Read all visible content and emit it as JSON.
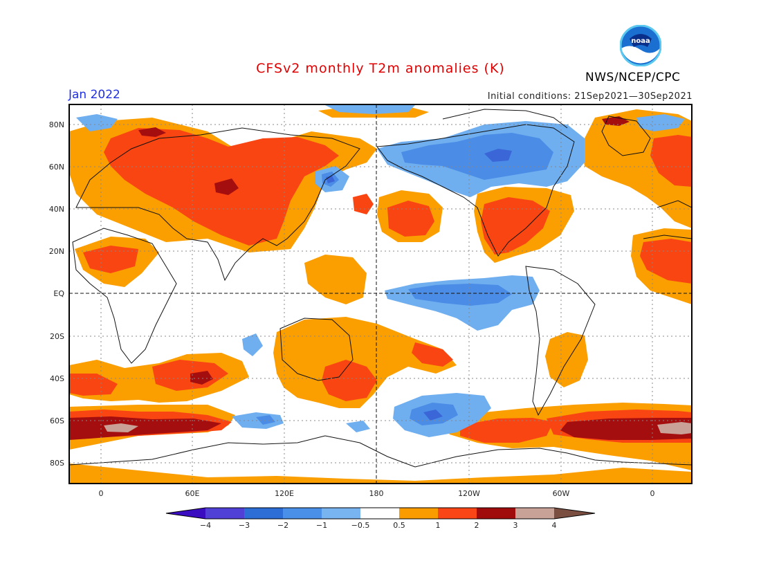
{
  "header": {
    "title": "CFSv2 monthly T2m anomalies (K)",
    "org": "NWS/NCEP/CPC",
    "month": "Jan 2022",
    "initial_conditions": "Initial conditions: 21Sep2021—30Sep2021",
    "logo_text": "noaa"
  },
  "colors": {
    "title": "#e00000",
    "month": "#2030e0",
    "n3": "#3b66d8",
    "n2": "#4a8ce6",
    "n1": "#6faeef",
    "p1": "#fb9e00",
    "p2": "#f94512",
    "p3": "#a50e0e",
    "p4": "#c9a196"
  },
  "map": {
    "lat_labels": [
      "80N",
      "60N",
      "40N",
      "20N",
      "EQ",
      "20S",
      "40S",
      "60S",
      "80S"
    ],
    "lon_labels": [
      "0",
      "60E",
      "120E",
      "180",
      "120W",
      "60W",
      "0"
    ]
  },
  "colorbar": {
    "colors": [
      "#3a0ec0",
      "#5040d6",
      "#2c6ed6",
      "#4a8fe8",
      "#78b4ef",
      "#ffffff",
      "#fa9c00",
      "#fa4616",
      "#a00b0b",
      "#c8a197",
      "#7a4f42"
    ],
    "labels": [
      "−4",
      "−3",
      "−2",
      "−1",
      "−0.5",
      "0.5",
      "1",
      "2",
      "3",
      "4"
    ]
  }
}
